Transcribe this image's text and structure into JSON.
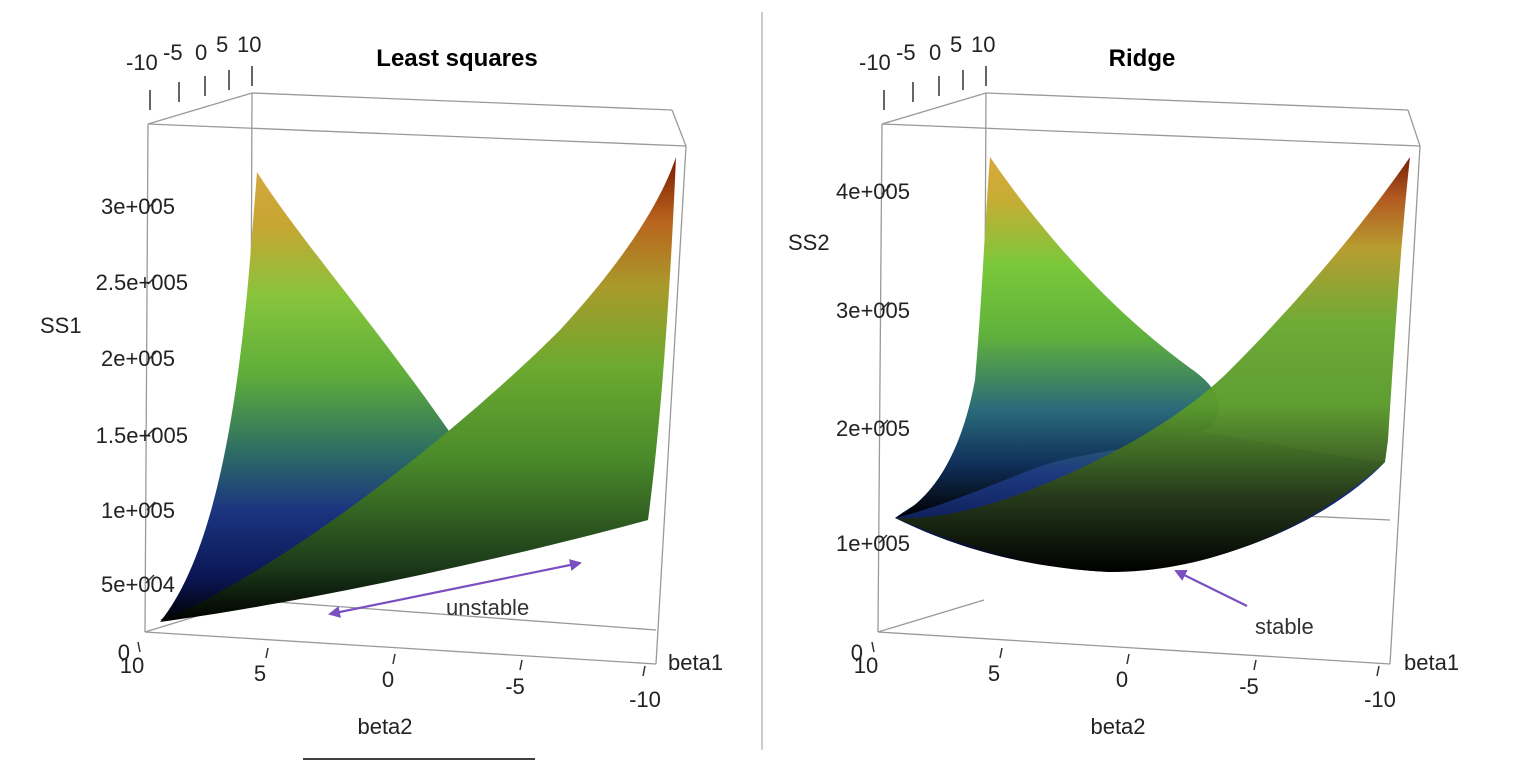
{
  "chart_data": [
    {
      "type": "surface",
      "title": "Least squares",
      "zlabel": "SS1",
      "xlabel": "beta1",
      "ylabel": "beta2",
      "x_top_ticks": [
        "-10",
        "-5",
        "0",
        "5",
        "10"
      ],
      "beta2_ticks": [
        "10",
        "5",
        "0",
        "-5",
        "-10"
      ],
      "z_ticks": [
        "0",
        "5e+004",
        "1e+005",
        "1.5e+005",
        "2e+005",
        "2.5e+005",
        "3e+005"
      ],
      "annotation": "unstable",
      "annotation_color": "#7a4fc0",
      "surface": {
        "shape": "valley",
        "corner_values": {
          "left_back": 320000,
          "right_back": 330000,
          "left_front": 15000,
          "right_front": 95000
        },
        "valley_min": 15000
      }
    },
    {
      "type": "surface",
      "title": "Ridge",
      "zlabel": "SS2",
      "xlabel": "beta1",
      "ylabel": "beta2",
      "x_top_ticks": [
        "-10",
        "-5",
        "0",
        "5",
        "10"
      ],
      "beta2_ticks": [
        "10",
        "5",
        "0",
        "-5",
        "-10"
      ],
      "z_ticks": [
        "0",
        "1e+005",
        "2e+005",
        "3e+005",
        "4e+005"
      ],
      "annotation": "stable",
      "annotation_color": "#7a4fc0",
      "surface": {
        "shape": "bowl",
        "corner_values": {
          "left_back": 430000,
          "right_back": 440000,
          "left_front": 120000,
          "right_front": 180000
        },
        "bowl_min": 80000
      }
    }
  ],
  "colors": {
    "surface_gradient": [
      "#000000",
      "#1a237a",
      "#2a7a6a",
      "#6fbf3a",
      "#c8a530",
      "#7a1a00"
    ],
    "divider": "#cccccc"
  }
}
